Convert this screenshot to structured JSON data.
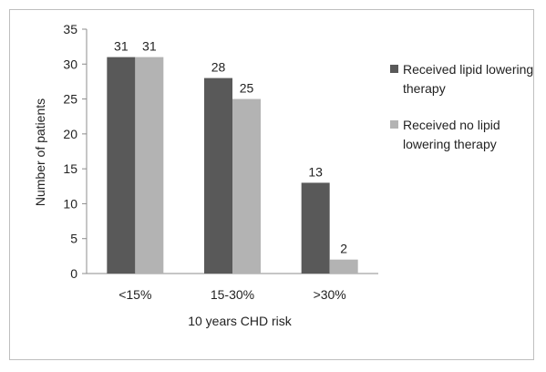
{
  "chart_data": {
    "type": "bar",
    "title": "",
    "xlabel": "10 years CHD risk",
    "ylabel": "Number of  patients",
    "categories": [
      "<15%",
      "15-30%",
      ">30%"
    ],
    "series": [
      {
        "name": "Received lipid lowering therapy",
        "values": [
          31,
          28,
          13
        ],
        "color": "#595959"
      },
      {
        "name": "Received no lipid lowering therapy",
        "values": [
          31,
          25,
          2
        ],
        "color": "#b3b3b3"
      }
    ],
    "ylim": [
      0,
      35
    ],
    "yticks": [
      0,
      5,
      10,
      15,
      20,
      25,
      30,
      35
    ],
    "grid": false,
    "legend_position": "right",
    "data_labels": true
  }
}
